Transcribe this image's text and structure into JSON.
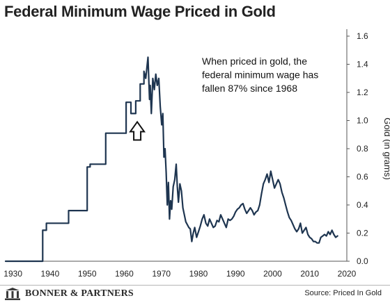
{
  "header": {
    "title": "Federal Minimum Wage Priced in Gold"
  },
  "footer": {
    "brand": "BONNER & PARTNERS",
    "source": "Source: Priced In Gold"
  },
  "chart_data": {
    "type": "line",
    "title": "Federal Minimum Wage Priced in Gold",
    "xlabel": "",
    "ylabel": "Gold (in grams)",
    "xlim": [
      1928,
      2020
    ],
    "ylim": [
      0,
      1.6
    ],
    "x_ticks": [
      1930,
      1940,
      1950,
      1960,
      1970,
      1980,
      1990,
      2000,
      2010,
      2020
    ],
    "y_ticks": [
      0.0,
      0.2,
      0.4,
      0.6,
      0.8,
      1.0,
      1.2,
      1.4,
      1.6
    ],
    "grid": false,
    "y_axis_position": "right",
    "line_color": "#1e3550",
    "annotation": [
      "When priced in gold, the",
      "federal minimum wage has",
      "fallen 87% since 1968"
    ],
    "marker": {
      "type": "up-arrow",
      "x": 1963.5,
      "y": 1.02
    },
    "series": [
      {
        "x": [
          1928,
          1938,
          1938,
          1939,
          1939,
          1945,
          1945,
          1950,
          1950,
          1950.8,
          1950.8,
          1955,
          1955,
          1960.5,
          1960.5,
          1961.8,
          1961.8,
          1963.1,
          1963.1,
          1964.3,
          1964.3,
          1965.3,
          1965.3,
          1965.8,
          1966.4,
          1966.8,
          1967.0,
          1967.3,
          1967.7,
          1968.1,
          1968.5,
          1968.9,
          1969.3,
          1969.7,
          1970.1,
          1970.4,
          1970.7,
          1971.0,
          1971.3,
          1971.6,
          1971.9,
          1972.2,
          1972.5,
          1972.8,
          1973.2,
          1973.6,
          1974.0,
          1974.3,
          1974.6,
          1975.0,
          1975.4,
          1975.8,
          1976.2,
          1976.6,
          1977.0,
          1977.4,
          1977.8,
          1978.2,
          1978.6,
          1979.0,
          1979.5,
          1980.0,
          1980.5,
          1981.0,
          1981.5,
          1982.0,
          1982.5,
          1983.0,
          1983.5,
          1984.0,
          1984.5,
          1985.0,
          1985.5,
          1986.0,
          1986.5,
          1987.0,
          1987.5,
          1988.0,
          1988.5,
          1989.0,
          1989.5,
          1990.0,
          1990.5,
          1991.0,
          1991.5,
          1992.0,
          1992.5,
          1993.0,
          1993.5,
          1994.0,
          1994.5,
          1995.0,
          1995.5,
          1996.0,
          1996.5,
          1997.0,
          1997.5,
          1998.0,
          1998.5,
          1999.0,
          1999.5,
          2000.0,
          2000.5,
          2001.0,
          2001.5,
          2002.0,
          2002.5,
          2003.0,
          2003.5,
          2004.0,
          2004.5,
          2005.0,
          2005.5,
          2006.0,
          2006.5,
          2007.0,
          2007.5,
          2008.0,
          2008.5,
          2009.0,
          2009.5,
          2010.0,
          2010.5,
          2011.0,
          2011.5,
          2012.0,
          2012.5,
          2013.0,
          2013.5,
          2014.0,
          2014.5,
          2015.0,
          2015.5,
          2016.0,
          2016.5,
          2017.0,
          2017.5
        ],
        "values": [
          0.0,
          0.0,
          0.22,
          0.22,
          0.27,
          0.27,
          0.36,
          0.36,
          0.67,
          0.67,
          0.69,
          0.69,
          0.91,
          0.91,
          1.13,
          1.13,
          1.05,
          1.05,
          1.14,
          1.14,
          1.26,
          1.26,
          1.35,
          1.3,
          1.45,
          1.15,
          1.25,
          1.05,
          1.3,
          1.22,
          1.33,
          1.25,
          1.3,
          1.1,
          0.97,
          1.05,
          0.74,
          0.8,
          0.63,
          0.4,
          0.56,
          0.3,
          0.43,
          0.37,
          0.53,
          0.58,
          0.69,
          0.53,
          0.42,
          0.55,
          0.5,
          0.38,
          0.33,
          0.28,
          0.26,
          0.24,
          0.23,
          0.14,
          0.2,
          0.24,
          0.17,
          0.21,
          0.25,
          0.3,
          0.33,
          0.27,
          0.25,
          0.3,
          0.27,
          0.24,
          0.25,
          0.29,
          0.28,
          0.33,
          0.3,
          0.27,
          0.24,
          0.3,
          0.29,
          0.3,
          0.32,
          0.35,
          0.37,
          0.38,
          0.4,
          0.41,
          0.37,
          0.34,
          0.36,
          0.38,
          0.36,
          0.33,
          0.35,
          0.36,
          0.4,
          0.48,
          0.55,
          0.58,
          0.62,
          0.56,
          0.64,
          0.58,
          0.52,
          0.55,
          0.58,
          0.55,
          0.49,
          0.45,
          0.4,
          0.35,
          0.31,
          0.29,
          0.26,
          0.23,
          0.21,
          0.23,
          0.27,
          0.2,
          0.22,
          0.24,
          0.19,
          0.17,
          0.16,
          0.14,
          0.14,
          0.13,
          0.13,
          0.17,
          0.18,
          0.19,
          0.18,
          0.21,
          0.19,
          0.22,
          0.19,
          0.17,
          0.18
        ]
      }
    ]
  }
}
